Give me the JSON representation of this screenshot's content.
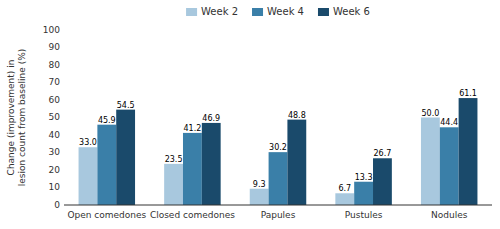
{
  "chart_data": {
    "type": "bar",
    "categories": [
      "Open comedones",
      "Closed comedones",
      "Papules",
      "Pustules",
      "Nodules"
    ],
    "series": [
      {
        "name": "Week 2",
        "color": "#a8c8de",
        "values": [
          33.0,
          23.5,
          9.3,
          6.7,
          50.0
        ],
        "value_labels": [
          "33.0",
          "23.5",
          "9.3",
          "6.7",
          "50.0"
        ]
      },
      {
        "name": "Week 4",
        "color": "#3a7fa8",
        "values": [
          45.9,
          41.2,
          30.2,
          13.3,
          44.4
        ]
      },
      {
        "name": "Week 6",
        "color": "#1a4a6b",
        "values": [
          54.5,
          46.9,
          48.8,
          26.7,
          61.1
        ]
      }
    ],
    "ylabel": "Change (improvement) in\nlesion count from baseline (%)",
    "ylim": [
      0,
      100
    ],
    "yticks": [
      0,
      10,
      20,
      30,
      40,
      50,
      60,
      70,
      80,
      90,
      100
    ],
    "grid": false,
    "legend": "top",
    "data_labels": true
  }
}
